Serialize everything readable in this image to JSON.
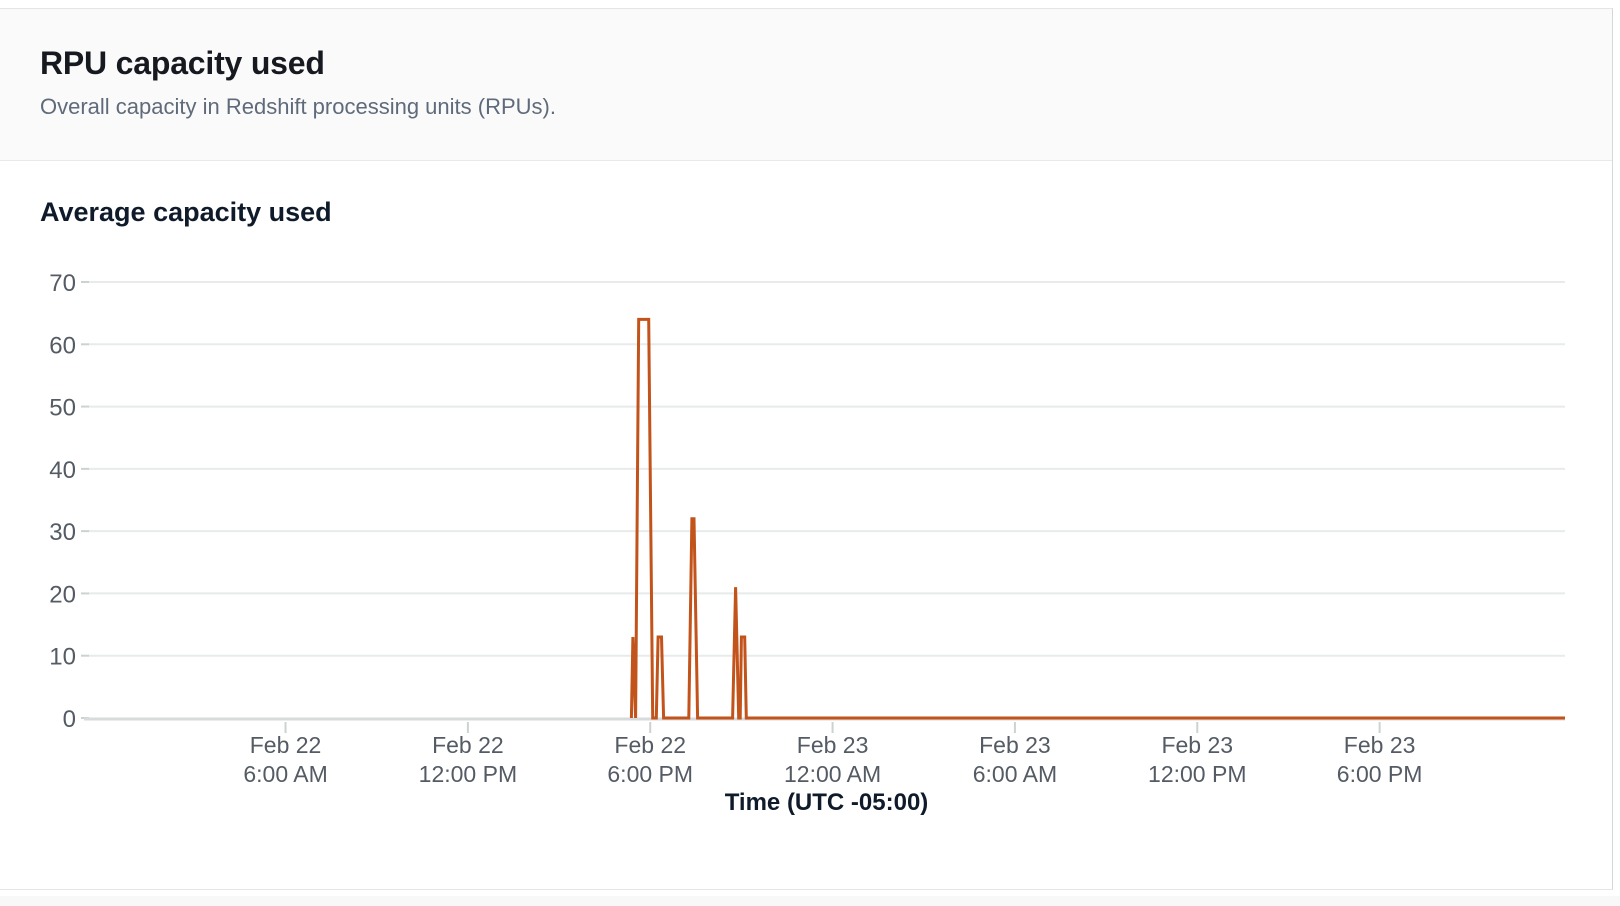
{
  "card": {
    "header": {
      "title": "RPU capacity used",
      "description": "Overall capacity in Redshift processing units (RPUs)."
    }
  },
  "chart_data": {
    "type": "line",
    "title": "Average capacity used",
    "xlabel": "Time (UTC -05:00)",
    "ylabel": "",
    "ylim": [
      0,
      70
    ],
    "y_ticks": [
      0,
      10,
      20,
      30,
      40,
      50,
      60,
      70
    ],
    "grid": true,
    "legend": "none",
    "x_domain_hours_from_feb22_midnight": [
      -0.5,
      48.1
    ],
    "x_ticks": [
      {
        "t": 6,
        "label": [
          "Feb 22",
          "6:00 AM"
        ]
      },
      {
        "t": 12,
        "label": [
          "Feb 22",
          "12:00 PM"
        ]
      },
      {
        "t": 18,
        "label": [
          "Feb 22",
          "6:00 PM"
        ]
      },
      {
        "t": 24,
        "label": [
          "Feb 23",
          "12:00 AM"
        ]
      },
      {
        "t": 30,
        "label": [
          "Feb 23",
          "6:00 AM"
        ]
      },
      {
        "t": 36,
        "label": [
          "Feb 23",
          "12:00 PM"
        ]
      },
      {
        "t": 42,
        "label": [
          "Feb 23",
          "6:00 PM"
        ]
      }
    ],
    "series": [
      {
        "name": "Average capacity used",
        "color": "#c2531a",
        "points_t_hours_value_rpu": [
          [
            17.38,
            0
          ],
          [
            17.43,
            13
          ],
          [
            17.52,
            0
          ],
          [
            17.62,
            64
          ],
          [
            17.95,
            64
          ],
          [
            18.08,
            0
          ],
          [
            18.2,
            0
          ],
          [
            18.26,
            13
          ],
          [
            18.37,
            13
          ],
          [
            18.44,
            0
          ],
          [
            19.27,
            0
          ],
          [
            19.37,
            32
          ],
          [
            19.44,
            32
          ],
          [
            19.56,
            0
          ],
          [
            20.71,
            0
          ],
          [
            20.81,
            21
          ],
          [
            20.91,
            0
          ],
          [
            20.96,
            0
          ],
          [
            21.0,
            13
          ],
          [
            21.11,
            13
          ],
          [
            21.16,
            0
          ],
          [
            48.1,
            0
          ]
        ]
      }
    ],
    "colors": {
      "line": "#c2531a",
      "gridline": "#e8ebeb",
      "axis_line": "#d7dbdb",
      "tick_mark": "#ccd2d2",
      "tick_label": "#545b64",
      "axis_title": "#0f1b2a"
    }
  }
}
